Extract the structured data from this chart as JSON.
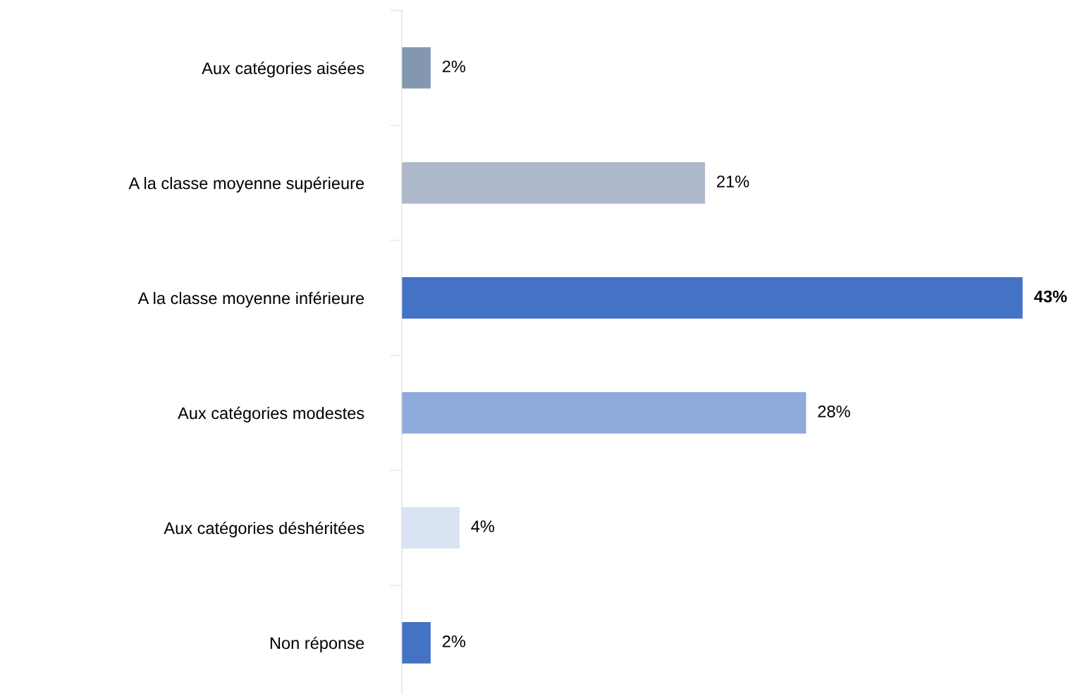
{
  "chart_data": {
    "type": "bar",
    "orientation": "horizontal",
    "categories": [
      "Aux catégories aisées",
      "A la classe moyenne supérieure",
      "A la classe moyenne inférieure",
      "Aux catégories modestes",
      "Aux catégories déshéritées",
      "Non réponse"
    ],
    "values": [
      2,
      21,
      43,
      28,
      4,
      2
    ],
    "colors": [
      "#8497b0",
      "#adb9ca",
      "#4472c4",
      "#8faadc",
      "#dae3f3",
      "#4472c4"
    ],
    "value_labels": [
      "2%",
      "21%",
      "43%",
      "28%",
      "4%",
      "2%"
    ],
    "grid": false,
    "legend": false
  }
}
